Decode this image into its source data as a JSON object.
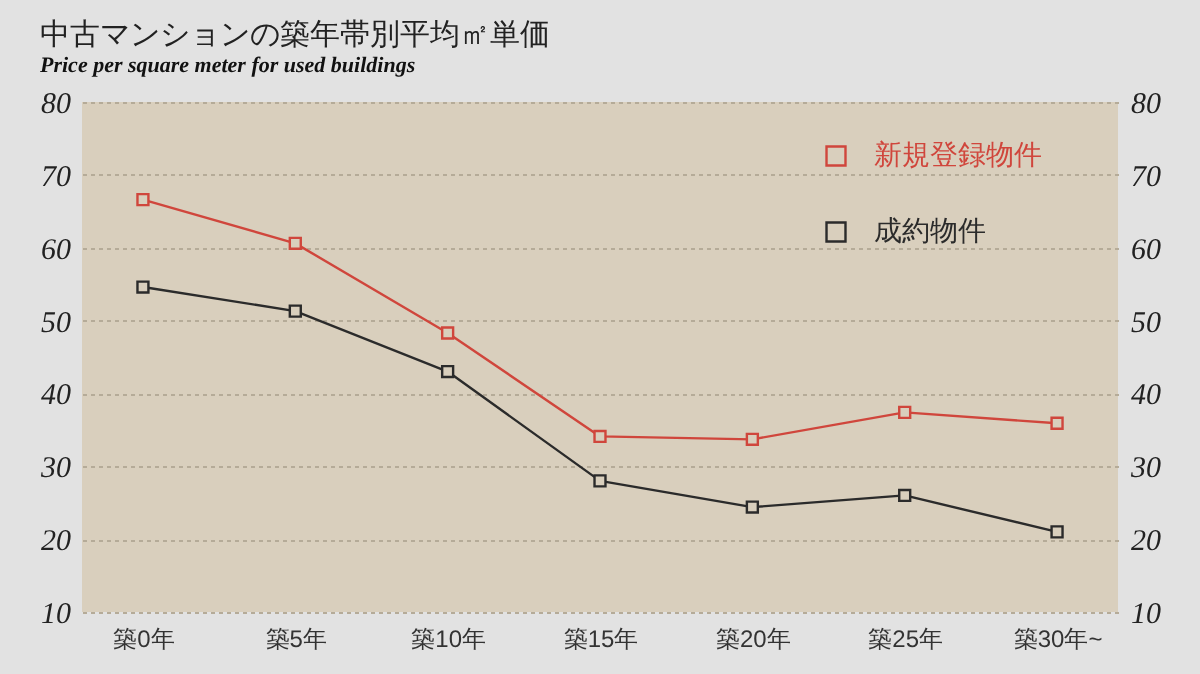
{
  "chart_data": {
    "type": "line",
    "title": "中古マンションの築年帯別平均㎡単価",
    "subtitle": "Price per square meter for used buildings",
    "categories": [
      "築0年",
      "築5年",
      "築10年",
      "築15年",
      "築20年",
      "築25年",
      "築30年~"
    ],
    "series": [
      {
        "name": "新規登録物件",
        "color": "#d0463c",
        "values": [
          66.6,
          60.6,
          48.3,
          34.1,
          33.7,
          37.4,
          35.9
        ]
      },
      {
        "name": "成約物件",
        "color": "#2b2b2b",
        "values": [
          54.6,
          51.3,
          43.0,
          28.0,
          24.4,
          26.0,
          21.0
        ]
      }
    ],
    "ylim": [
      10,
      80
    ],
    "yticks": [
      10,
      20,
      30,
      40,
      50,
      60,
      70,
      80
    ],
    "y2lim": [
      10,
      80
    ],
    "y2ticks": [
      10,
      20,
      30,
      40,
      50,
      60,
      70,
      80
    ],
    "grid": "y",
    "legend": "top right",
    "marker": "square",
    "line_style": "solid"
  }
}
